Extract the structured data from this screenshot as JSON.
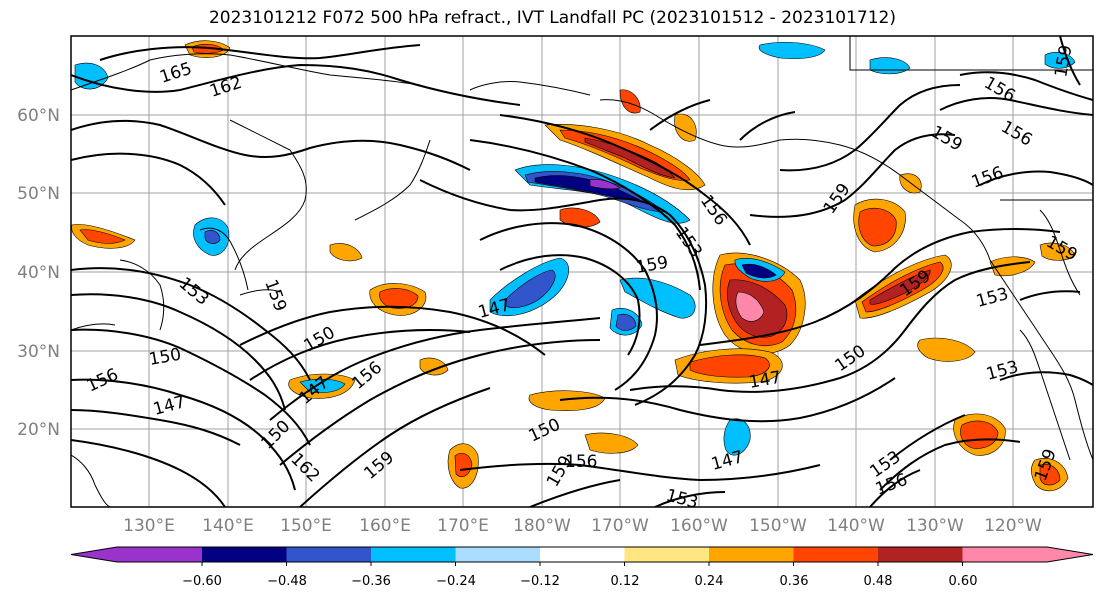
{
  "title": "2023101212 F072 500 hPa refract., IVT Landfall PC (2023101512 - 2023101712)",
  "lat_labels": [
    "60°N",
    "50°N",
    "40°N",
    "30°N",
    "20°N"
  ],
  "lon_labels": [
    "130°E",
    "140°E",
    "150°E",
    "160°E",
    "170°E",
    "180°W",
    "170°W",
    "160°W",
    "150°W",
    "140°W",
    "130°W",
    "120°W"
  ],
  "colorbar": {
    "colors": [
      "#9933cc",
      "#000080",
      "#3355cc",
      "#00bfff",
      "#aaddff",
      "#ffffff",
      "#ffe680",
      "#ffa500",
      "#ff4500",
      "#b22222",
      "#ff88aa"
    ],
    "tick_labels": [
      "−0.60",
      "−0.48",
      "−0.36",
      "−0.24",
      "−0.12",
      "0.12",
      "0.24",
      "0.36",
      "0.48",
      "0.60"
    ]
  },
  "contour_labels": [
    "165",
    "162",
    "156",
    "156",
    "156",
    "159",
    "159",
    "159",
    "159",
    "156",
    "153",
    "159",
    "147",
    "153",
    "159",
    "150",
    "150",
    "156",
    "147",
    "147",
    "150",
    "156",
    "162",
    "159",
    "150",
    "159",
    "156",
    "153",
    "147",
    "153",
    "159",
    "147",
    "150",
    "156",
    "153",
    "159",
    "153"
  ]
}
